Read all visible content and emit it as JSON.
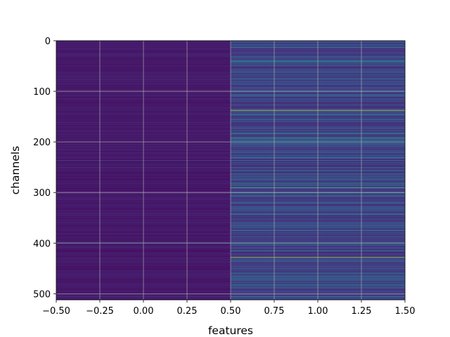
{
  "chart_data": {
    "type": "heatmap",
    "title": "",
    "xlabel": "features",
    "ylabel": "channels",
    "x_ticks": [
      "−0.50",
      "−0.25",
      "0.00",
      "0.25",
      "0.50",
      "0.75",
      "1.00",
      "1.25",
      "1.50"
    ],
    "y_ticks": [
      "0",
      "100",
      "200",
      "300",
      "400",
      "500"
    ],
    "xlim": [
      -0.5,
      1.5
    ],
    "ylim": [
      512,
      0
    ],
    "grid": true,
    "colormap": "viridis",
    "columns": [
      0,
      1
    ],
    "rows": 512,
    "column_base_values": [
      0.04,
      0.12
    ],
    "row_highlights": [
      {
        "row": 8,
        "col0": 0.05,
        "col1": 0.35
      },
      {
        "row": 13,
        "col0": 0.05,
        "col1": 0.45
      },
      {
        "row": 40,
        "col0": 0.07,
        "col1": 0.55
      },
      {
        "row": 62,
        "col0": 0.07,
        "col1": 0.5
      },
      {
        "row": 100,
        "col0": 0.05,
        "col1": 0.4
      },
      {
        "row": 137,
        "col0": 0.1,
        "col1": 0.92
      },
      {
        "row": 183,
        "col0": 0.07,
        "col1": 0.6
      },
      {
        "row": 192,
        "col0": 0.07,
        "col1": 0.55
      },
      {
        "row": 236,
        "col0": 0.22,
        "col1": 0.45
      },
      {
        "row": 250,
        "col0": 0.15,
        "col1": 0.45
      },
      {
        "row": 263,
        "col0": 0.07,
        "col1": 0.5
      },
      {
        "row": 290,
        "col0": 0.07,
        "col1": 0.72
      },
      {
        "row": 342,
        "col0": 0.07,
        "col1": 0.45
      },
      {
        "row": 398,
        "col0": 0.3,
        "col1": 0.5
      },
      {
        "row": 428,
        "col0": 0.1,
        "col1": 0.88
      },
      {
        "row": 470,
        "col0": 0.07,
        "col1": 0.45
      },
      {
        "row": 505,
        "col0": 0.2,
        "col1": 0.5
      }
    ]
  }
}
